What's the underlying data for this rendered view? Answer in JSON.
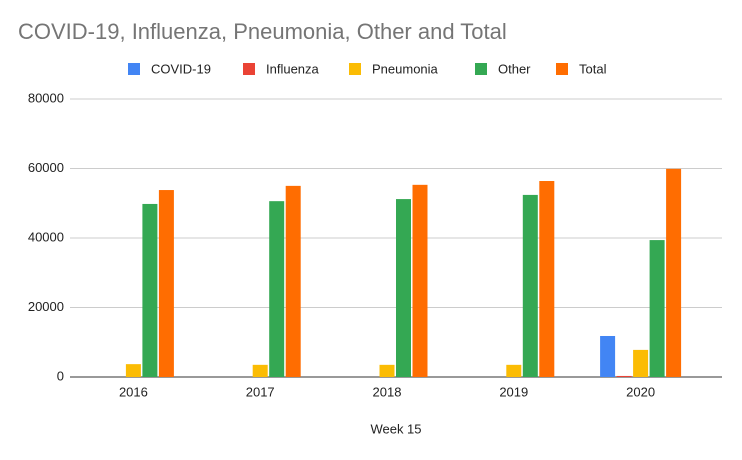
{
  "chart_data": {
    "type": "bar",
    "title": "COVID-19, Influenza, Pneumonia, Other and Total",
    "x_label": "Week 15",
    "categories": [
      "2016",
      "2017",
      "2018",
      "2019",
      "2020"
    ],
    "series": [
      {
        "name": "COVID-19",
        "color": "#4285f4",
        "values": [
          0,
          0,
          0,
          0,
          11800
        ]
      },
      {
        "name": "Influenza",
        "color": "#ea4335",
        "values": [
          0,
          0,
          0,
          0,
          300
        ]
      },
      {
        "name": "Pneumonia",
        "color": "#fbbc04",
        "values": [
          3700,
          3500,
          3500,
          3500,
          7800
        ]
      },
      {
        "name": "Other",
        "color": "#34a853",
        "values": [
          49800,
          50600,
          51200,
          52400,
          39400
        ]
      },
      {
        "name": "Total",
        "color": "#ff6d01",
        "values": [
          53800,
          55000,
          55300,
          56400,
          59900
        ]
      }
    ],
    "ylim": [
      0,
      80000
    ],
    "yticks": [
      0,
      20000,
      40000,
      60000,
      80000
    ],
    "grid": true,
    "legend": "top"
  }
}
